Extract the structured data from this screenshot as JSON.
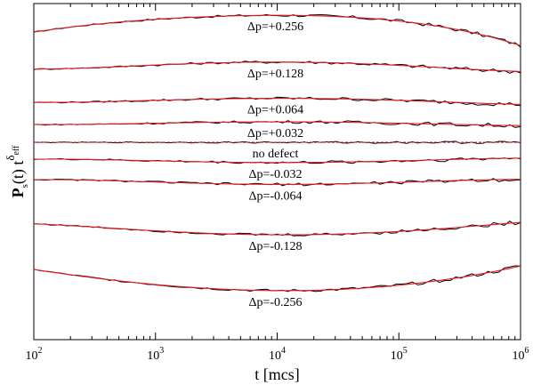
{
  "chart_data": {
    "type": "line",
    "x_scale": "log",
    "y_scale": "offset-curves",
    "xlim": [
      100,
      1000000
    ],
    "x_ticks": [
      100,
      1000,
      10000,
      100000,
      1000000
    ],
    "x_tick_labels": [
      {
        "base": "10",
        "exp": "2"
      },
      {
        "base": "10",
        "exp": "3"
      },
      {
        "base": "10",
        "exp": "4"
      },
      {
        "base": "10",
        "exp": "5"
      },
      {
        "base": "10",
        "exp": "6"
      }
    ],
    "xlabel": "t [mcs]",
    "ylabel": {
      "main": "P",
      "sub": "s",
      "arg": "(t) t",
      "sup": "δ",
      "supsub": "eff"
    },
    "grid": false,
    "colors": {
      "data": "#000000",
      "fit": "#e8181c"
    },
    "series": [
      {
        "label": "Δp=+0.256",
        "y_at": [
          0.915,
          0.953,
          0.965,
          0.948,
          0.875
        ]
      },
      {
        "label": "Δp=+0.128",
        "y_at": [
          0.805,
          0.817,
          0.826,
          0.816,
          0.798
        ]
      },
      {
        "label": "Δp=+0.064",
        "y_at": [
          0.706,
          0.712,
          0.718,
          0.712,
          0.7
        ]
      },
      {
        "label": "Δp=+0.032",
        "y_at": [
          0.64,
          0.644,
          0.648,
          0.644,
          0.637
        ]
      },
      {
        "label": "no defect",
        "y_at": [
          0.587,
          0.587,
          0.587,
          0.587,
          0.587
        ],
        "dashed": true
      },
      {
        "label": "Δp=-0.032",
        "y_at": [
          0.537,
          0.532,
          0.527,
          0.532,
          0.54
        ]
      },
      {
        "label": "Δp=-0.064",
        "y_at": [
          0.476,
          0.469,
          0.462,
          0.468,
          0.477
        ]
      },
      {
        "label": "Δp=-0.128",
        "y_at": [
          0.345,
          0.324,
          0.312,
          0.322,
          0.349
        ]
      },
      {
        "label": "Δp=-0.256",
        "y_at": [
          0.209,
          0.164,
          0.146,
          0.162,
          0.219
        ]
      }
    ]
  }
}
